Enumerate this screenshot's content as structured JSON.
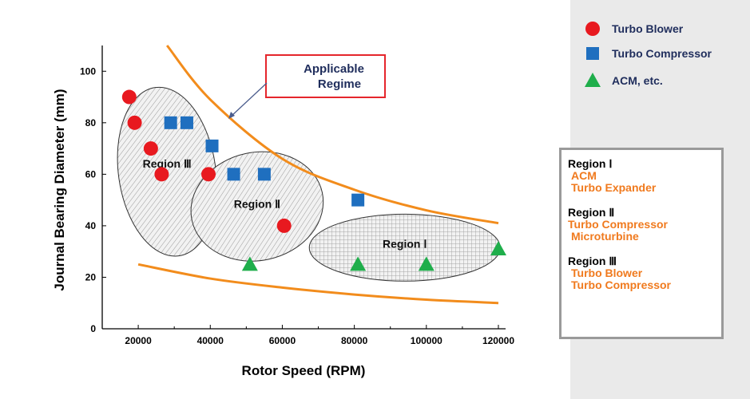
{
  "colors": {
    "blower": "#e8191f",
    "compressor": "#1f6fbf",
    "acm": "#1fae4b",
    "curve": "#f28c1c",
    "callout_border": "#e5262c",
    "callout_text": "#1f2d5c",
    "legend_text": "#1f2d5c",
    "region_box_item": "#f07a1e"
  },
  "legend": [
    {
      "label": "Turbo Blower",
      "marker": "circle",
      "color": "#e8191f"
    },
    {
      "label": "Turbo Compressor",
      "marker": "square",
      "color": "#1f6fbf"
    },
    {
      "label": "ACM, etc.",
      "marker": "triangle",
      "color": "#1fae4b"
    }
  ],
  "callout": {
    "line1": "Applicable",
    "line2": "Regime"
  },
  "region_box": {
    "groups": [
      {
        "title": "Region Ⅰ",
        "items": [
          "ACM",
          "Turbo Expander"
        ]
      },
      {
        "title": "Region Ⅱ",
        "items": [
          "Turbo Compressor",
          "Microturbine"
        ]
      },
      {
        "title": "Region Ⅲ",
        "items": [
          "Turbo Blower",
          "Turbo Compressor"
        ]
      }
    ]
  },
  "chart_data": {
    "type": "scatter",
    "title": "",
    "xlabel": "Rotor Speed (RPM)",
    "ylabel": "Journal Bearing Diameter (mm)",
    "xlim": [
      10000,
      122000
    ],
    "ylim": [
      0,
      110
    ],
    "xticks": [
      20000,
      40000,
      60000,
      80000,
      100000,
      120000
    ],
    "yticks": [
      0,
      20,
      40,
      60,
      80,
      100
    ],
    "series": [
      {
        "name": "Turbo Blower",
        "marker": "circle",
        "points": [
          [
            17500,
            90
          ],
          [
            19000,
            80
          ],
          [
            23500,
            70
          ],
          [
            26500,
            60
          ],
          [
            39500,
            60
          ],
          [
            60500,
            40
          ]
        ]
      },
      {
        "name": "Turbo Compressor",
        "marker": "square",
        "points": [
          [
            29000,
            80
          ],
          [
            33500,
            80
          ],
          [
            40500,
            71
          ],
          [
            46500,
            60
          ],
          [
            55000,
            60
          ],
          [
            81000,
            50
          ]
        ]
      },
      {
        "name": "ACM, etc.",
        "marker": "triangle",
        "points": [
          [
            51000,
            25
          ],
          [
            81000,
            25
          ],
          [
            100000,
            25
          ],
          [
            120000,
            31
          ]
        ]
      }
    ],
    "boundary_curves": [
      {
        "name": "upper",
        "points": [
          [
            28000,
            110
          ],
          [
            40000,
            89
          ],
          [
            60000,
            66
          ],
          [
            80000,
            54
          ],
          [
            100000,
            46
          ],
          [
            120000,
            41
          ]
        ]
      },
      {
        "name": "lower",
        "points": [
          [
            20000,
            25
          ],
          [
            40000,
            19.5
          ],
          [
            60000,
            16
          ],
          [
            80000,
            13.3
          ],
          [
            100000,
            11.3
          ],
          [
            120000,
            10
          ]
        ]
      }
    ],
    "regions": [
      {
        "label": "Region Ⅲ",
        "cx": 28000,
        "cy": 61,
        "rx": 13500,
        "ry": 33,
        "rotate": -8
      },
      {
        "label": "Region Ⅱ",
        "cx": 53000,
        "cy": 47.5,
        "rx": 18500,
        "ry": 21,
        "rotate": -12
      },
      {
        "label": "Region Ⅰ",
        "cx": 94000,
        "cy": 31.5,
        "rx": 26500,
        "ry": 13,
        "rotate": 0
      }
    ]
  }
}
